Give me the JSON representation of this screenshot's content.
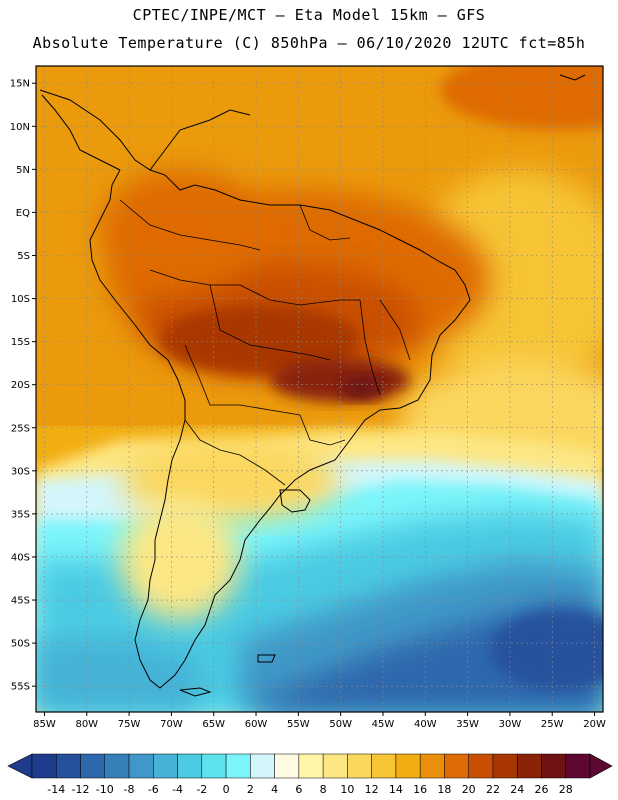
{
  "header": {
    "line1": "CPTEC/INPE/MCT –  Eta Model 15km – GFS",
    "line2": "Absolute Temperature (C) 850hPa – 06/10/2020 12UTC fct=85h"
  },
  "map": {
    "lat_labels": [
      "15N",
      "10N",
      "5N",
      "EQ",
      "5S",
      "10S",
      "15S",
      "20S",
      "25S",
      "30S",
      "35S",
      "40S",
      "45S",
      "50S",
      "55S"
    ],
    "lat_values": [
      15,
      10,
      5,
      0,
      -5,
      -10,
      -15,
      -20,
      -25,
      -30,
      -35,
      -40,
      -45,
      -50,
      -55
    ],
    "lon_labels": [
      "85W",
      "80W",
      "75W",
      "70W",
      "65W",
      "60W",
      "55W",
      "50W",
      "45W",
      "40W",
      "35W",
      "30W",
      "25W",
      "20W"
    ],
    "lon_values": [
      -85,
      -80,
      -75,
      -70,
      -65,
      -60,
      -55,
      -50,
      -45,
      -40,
      -35,
      -30,
      -25,
      -20
    ],
    "lat_range": [
      -58,
      17
    ],
    "lon_range": [
      -86,
      -19
    ]
  },
  "colorbar": {
    "labels": [
      "-14",
      "-12",
      "-10",
      "-8",
      "-6",
      "-4",
      "-2",
      "0",
      "2",
      "4",
      "6",
      "8",
      "10",
      "12",
      "14",
      "16",
      "18",
      "20",
      "22",
      "24",
      "26",
      "28"
    ],
    "colors": [
      "#1f3b8c",
      "#25519c",
      "#2d68ac",
      "#3680ba",
      "#3f98c8",
      "#45b2d6",
      "#4ccbe3",
      "#5ee2ee",
      "#7cf5fa",
      "#d3f6fb",
      "#fffbe3",
      "#fff6a8",
      "#fde784",
      "#fbd75e",
      "#f6c434",
      "#f2ad11",
      "#eb8f0a",
      "#de6b05",
      "#c94f04",
      "#a83703",
      "#8a2308",
      "#6e1213",
      "#5c0830"
    ],
    "under_color": "#1f3b8c",
    "over_color": "#5c0830"
  }
}
